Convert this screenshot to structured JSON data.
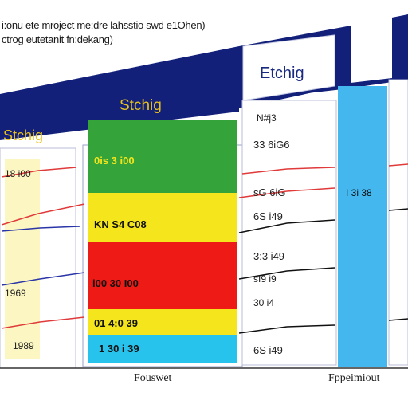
{
  "caption": {
    "line1": "i:onu ete mroject me:dre lahsstio swd e1Ohen)",
    "line2": "ctrog eutetanit fn:dekang)"
  },
  "panels": {
    "left_title": "Stchig",
    "middle_title": "Stchig",
    "right_title": "Etchig"
  },
  "left_values": [
    "18 i00",
    "1969",
    "1989"
  ],
  "middle_values": [
    "0is 3 i00",
    "KN S4 C08",
    "i00 30 I00",
    "01 4:0 39",
    "1 30 i 39"
  ],
  "right_values": [
    "N#j3",
    "33 6iG6",
    "sG 6iG",
    "6S i49",
    "3:3 i49",
    "sI9 i9",
    "30 i4",
    "6S i49"
  ],
  "blue_value": "I 3i 38",
  "footer": {
    "left": "Fouswet",
    "right": "Fppeimiout"
  },
  "colors": {
    "header_navy": "#13207a",
    "header_text": "#e8c21a",
    "green": "#34a43a",
    "yellow": "#f5e51c",
    "red": "#ee1a16",
    "cyan": "#27c3ec",
    "blue_band": "#43b7ee",
    "red_line": "#e03a3a",
    "blue_line": "#2a35a8"
  }
}
